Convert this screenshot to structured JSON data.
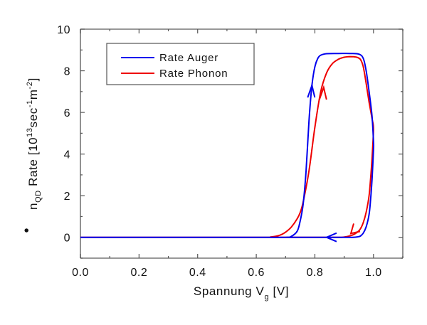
{
  "chart_data": {
    "type": "line",
    "title": "",
    "xlabel": {
      "main": "Spannung V",
      "sub": "g",
      "unit": " [V]"
    },
    "ylabel": {
      "dot": "•",
      "main": "n",
      "sub": "QD",
      "text": " Rate [10",
      "exp1": "13",
      "mid": "sec",
      "exp2": "-1",
      "mid2": "m",
      "exp3": "-2",
      "end": "]"
    },
    "xlim": [
      0,
      1.1
    ],
    "ylim": [
      -1,
      10
    ],
    "xticks": [
      0.0,
      0.2,
      0.4,
      0.6,
      0.8,
      1.0
    ],
    "xtick_labels": [
      "0.0",
      "0.2",
      "0.4",
      "0.6",
      "0.8",
      "1.0"
    ],
    "xminor": [
      0.1,
      0.3,
      0.5,
      0.7,
      0.9,
      1.1
    ],
    "yticks": [
      0,
      2,
      4,
      6,
      8,
      10
    ],
    "ytick_labels": [
      "0",
      "2",
      "4",
      "6",
      "8",
      "10"
    ],
    "yminor": [
      -1,
      1,
      3,
      5,
      7,
      9
    ],
    "grid": false,
    "legend": {
      "position": "top-left",
      "entries": [
        "Rate Auger",
        "Rate Phonon"
      ]
    },
    "series": [
      {
        "name": "Rate Auger",
        "color": "#0000ee",
        "x": [
          0.0,
          0.6,
          0.7,
          0.72,
          0.74,
          0.75,
          0.76,
          0.77,
          0.78,
          0.79,
          0.8,
          0.81,
          0.82,
          0.84,
          0.88,
          0.92,
          0.95,
          0.965,
          0.975,
          0.985,
          0.995,
          1.0,
          1.0,
          0.995,
          0.99,
          0.985,
          0.975,
          0.965,
          0.955,
          0.945,
          0.93,
          0.9,
          0.85,
          0.8,
          0.7,
          0.6,
          0.4,
          0.0
        ],
        "y": [
          0.0,
          0.0,
          0.0,
          0.05,
          0.3,
          0.8,
          1.6,
          3.2,
          5.6,
          7.3,
          8.2,
          8.6,
          8.75,
          8.82,
          8.83,
          8.83,
          8.8,
          8.6,
          8.0,
          7.0,
          5.8,
          4.6,
          4.2,
          2.8,
          1.8,
          1.1,
          0.5,
          0.2,
          0.06,
          0.02,
          0.0,
          0.0,
          0.0,
          0.0,
          0.0,
          0.0,
          0.0,
          0.0
        ],
        "arrows": [
          {
            "x": 0.79,
            "y": 7.3,
            "dir": "up"
          },
          {
            "x": 0.84,
            "y": 0.0,
            "dir": "left"
          }
        ]
      },
      {
        "name": "Rate Phonon",
        "color": "#ee0000",
        "x": [
          0.0,
          0.6,
          0.65,
          0.68,
          0.7,
          0.72,
          0.74,
          0.75,
          0.76,
          0.78,
          0.8,
          0.82,
          0.84,
          0.86,
          0.88,
          0.9,
          0.92,
          0.94,
          0.955,
          0.965,
          0.975,
          0.985,
          0.995,
          1.0,
          0.995,
          0.99,
          0.985,
          0.975,
          0.965,
          0.955,
          0.945,
          0.93,
          0.91,
          0.89,
          0.86,
          0.8,
          0.6,
          0.0
        ],
        "y": [
          0.0,
          0.0,
          0.02,
          0.1,
          0.25,
          0.5,
          0.9,
          1.2,
          1.7,
          3.2,
          5.3,
          7.0,
          7.9,
          8.35,
          8.55,
          8.65,
          8.68,
          8.66,
          8.55,
          8.2,
          7.4,
          6.5,
          5.7,
          5.2,
          3.8,
          2.8,
          2.0,
          1.2,
          0.7,
          0.4,
          0.25,
          0.12,
          0.04,
          0.0,
          0.0,
          0.0,
          0.0,
          0.0
        ],
        "arrows": [
          {
            "x": 0.83,
            "y": 7.2,
            "dir": "up"
          },
          {
            "x": 0.93,
            "y": 0.25,
            "dir": "down-left"
          }
        ]
      }
    ]
  }
}
